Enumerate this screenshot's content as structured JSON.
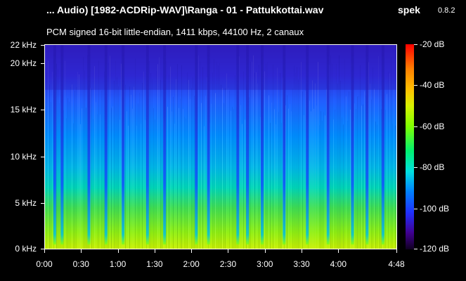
{
  "header": {
    "title": "... Audio) [1982-ACDRip-WAV]\\Ranga - 01 - Pattukkottai.wav",
    "app_name": "spek",
    "version": "0.8.2",
    "info": "PCM signed 16-bit little-endian, 1411 kbps, 44100 Hz, 2 canaux"
  },
  "chart_data": {
    "type": "heatmap",
    "title": "",
    "xlabel": "",
    "ylabel": "",
    "x_ticks": [
      "0:00",
      "0:30",
      "1:00",
      "1:30",
      "2:00",
      "2:30",
      "3:00",
      "3:30",
      "4:00",
      "4:48"
    ],
    "x_tick_seconds": [
      0,
      30,
      60,
      90,
      120,
      150,
      180,
      210,
      240,
      288
    ],
    "y_ticks": [
      "0 kHz",
      "5 kHz",
      "10 kHz",
      "15 kHz",
      "20 kHz",
      "22 kHz"
    ],
    "y_tick_khz": [
      0,
      5,
      10,
      15,
      20,
      22
    ],
    "xlim_seconds": [
      0,
      288
    ],
    "ylim_khz": [
      0,
      22.05
    ],
    "colorbar_ticks": [
      "-20 dB",
      "-40 dB",
      "-60 dB",
      "-80 dB",
      "-100 dB",
      "-120 dB"
    ],
    "colorbar_db": [
      -20,
      -40,
      -60,
      -80,
      -100,
      -120
    ],
    "colorbar_range_db": [
      -120,
      -20
    ],
    "colors": [
      "#ff0000",
      "#ffc000",
      "#80ff00",
      "#00e0e0",
      "#0080ff",
      "#2030ff",
      "#400090",
      "#100020"
    ],
    "quiet_gaps_seconds": [
      8,
      14,
      36,
      50,
      64,
      84,
      98,
      124,
      134,
      158,
      166,
      178,
      196,
      215,
      232,
      252,
      264,
      277
    ]
  }
}
